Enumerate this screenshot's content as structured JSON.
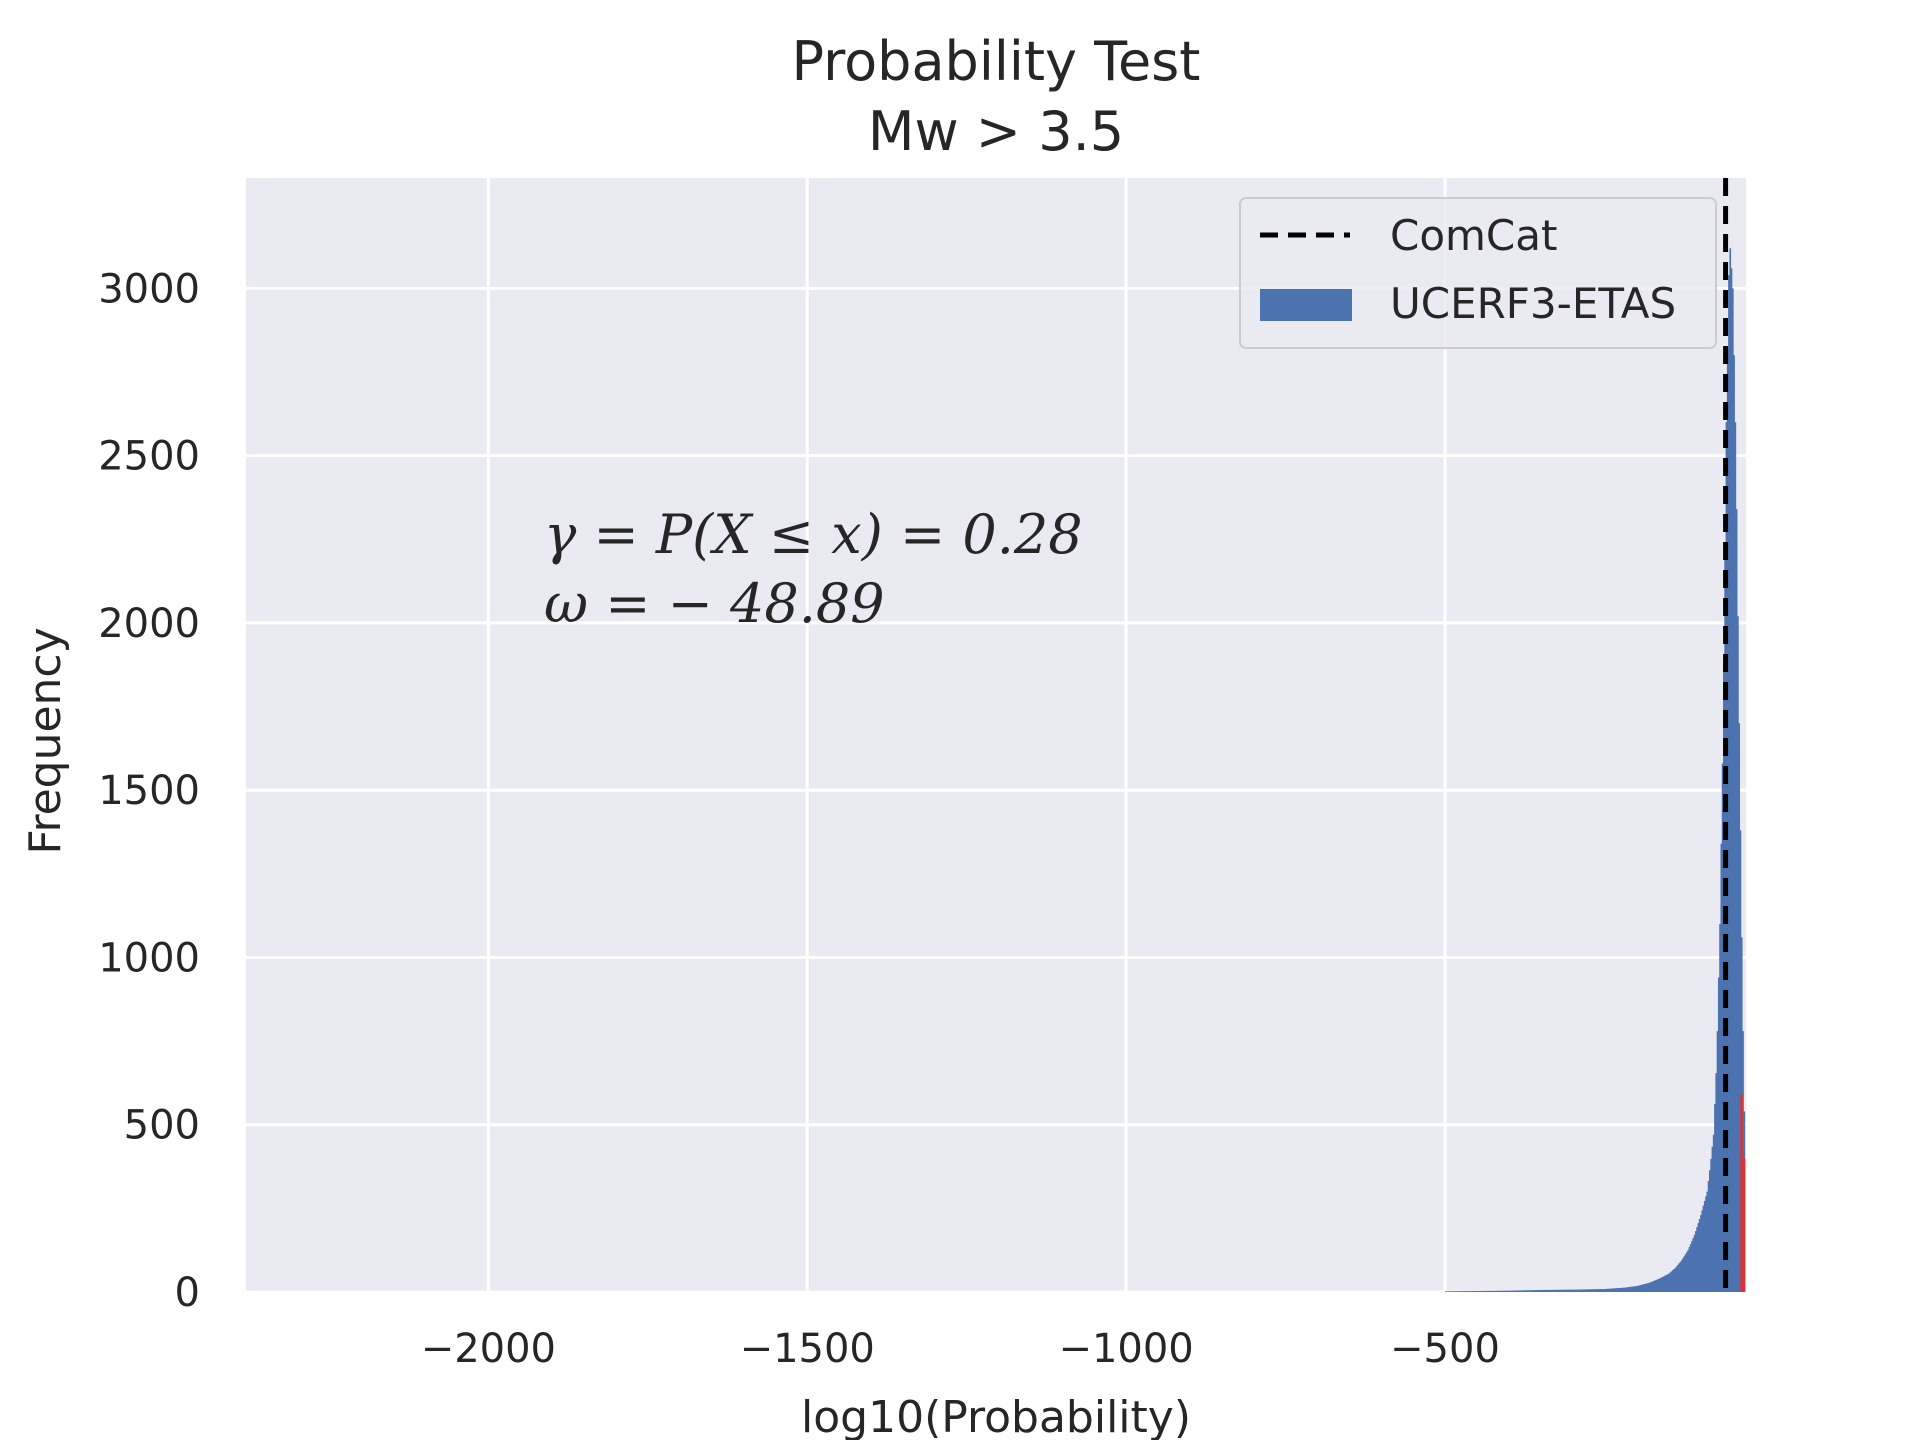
{
  "chart_data": {
    "type": "bar",
    "title": "Probability Test",
    "subtitle": "Mw > 3.5",
    "xlabel": "log10(Probability)",
    "ylabel": "Frequency",
    "xlim": [
      -2380,
      -28
    ],
    "ylim": [
      0,
      3330
    ],
    "xticks": [
      -2000,
      -1500,
      -1000,
      -500
    ],
    "xtick_labels": [
      "−2000",
      "−1500",
      "−1000",
      "−500"
    ],
    "yticks": [
      0,
      500,
      1000,
      1500,
      2000,
      2500,
      3000
    ],
    "ytick_labels": [
      "0",
      "500",
      "1000",
      "1500",
      "2000",
      "2500",
      "3000"
    ],
    "grid": true,
    "legend_position": "top-right",
    "series": [
      {
        "name": "UCERF3-ETAS",
        "color": "#4c72b0",
        "bin_width": 5,
        "bins": [
          [
            -500,
            2
          ],
          [
            -450,
            3
          ],
          [
            -400,
            4
          ],
          [
            -350,
            6
          ],
          [
            -300,
            7
          ],
          [
            -250,
            9
          ],
          [
            -220,
            13
          ],
          [
            -200,
            18
          ],
          [
            -180,
            28
          ],
          [
            -165,
            40
          ],
          [
            -150,
            55
          ],
          [
            -140,
            72
          ],
          [
            -130,
            95
          ],
          [
            -120,
            125
          ],
          [
            -110,
            170
          ],
          [
            -100,
            230
          ],
          [
            -90,
            300
          ],
          [
            -85,
            380
          ],
          [
            -80,
            470
          ],
          [
            -75,
            700
          ],
          [
            -70,
            1100
          ],
          [
            -65,
            1700
          ],
          [
            -60,
            2600
          ],
          [
            -55,
            3150
          ],
          [
            -50,
            3000
          ],
          [
            -45,
            2500
          ],
          [
            -40,
            1700
          ],
          [
            -35,
            900
          ],
          [
            -30,
            300
          ]
        ]
      }
    ],
    "observed": {
      "name": "ComCat",
      "x": -60,
      "color": "#000000",
      "style": "dashed"
    },
    "highlight_bins": {
      "color": "#e03030",
      "bins": [
        [
          -37,
          590
        ],
        [
          -33,
          400
        ]
      ]
    },
    "annotations": [
      "γ = P(X ≤ x) = 0.28",
      "ω = − 48.89"
    ]
  }
}
